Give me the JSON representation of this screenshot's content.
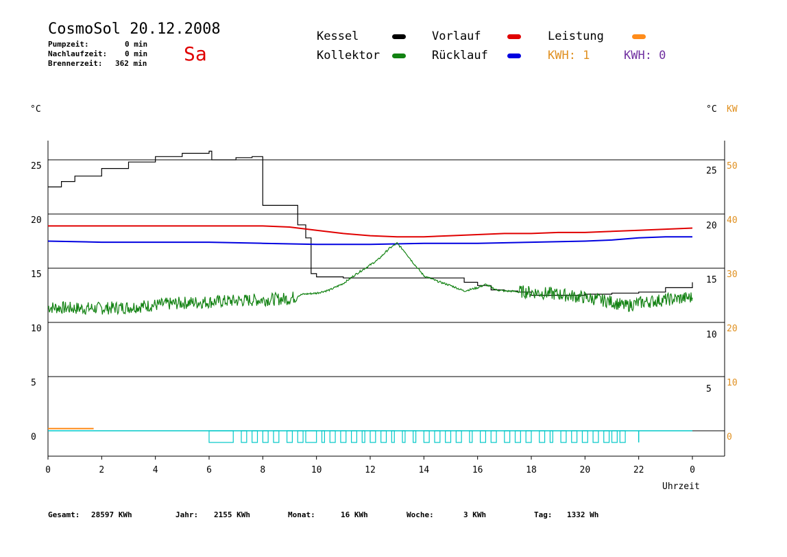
{
  "header": {
    "title": "CosmoSol 20.12.2008",
    "day": "Sa",
    "info": [
      {
        "label": "Pumpzeit:",
        "value": "0 min"
      },
      {
        "label": "Nachlaufzeit:",
        "value": "0 min"
      },
      {
        "label": "Brennerzeit:",
        "value": "362 min"
      }
    ]
  },
  "legend": {
    "kessel": {
      "label": "Kessel",
      "color": "#000000"
    },
    "vorlauf": {
      "label": "Vorlauf",
      "color": "#e00000"
    },
    "leistung": {
      "label": "Leistung",
      "color": "#ff8c1a"
    },
    "kollektor": {
      "label": "Kollektor",
      "color": "#128212"
    },
    "ruecklauf": {
      "label": "Rücklauf",
      "color": "#0000e0"
    },
    "kwh1": {
      "label": "KWH: 1",
      "color": "#e09020"
    },
    "kwh2": {
      "label": "KWH: 0",
      "color": "#7030a0"
    }
  },
  "axes": {
    "left_unit": "°C",
    "right_unit": "°C",
    "right_unit2": "KW",
    "xlabel": "Uhrzeit"
  },
  "chart_data": {
    "type": "line",
    "x_ticks": [
      "0",
      "2",
      "4",
      "6",
      "8",
      "10",
      "12",
      "14",
      "16",
      "18",
      "20",
      "22",
      "0"
    ],
    "y_left_ticks": [
      "25",
      "20",
      "15",
      "10",
      "5",
      "0"
    ],
    "y_right_ticks": [
      "25",
      "20",
      "15",
      "10",
      "5"
    ],
    "y_kw_ticks": [
      "50",
      "40",
      "30",
      "20",
      "10",
      "0"
    ],
    "xlim": [
      0,
      24
    ],
    "ylim": [
      -2.5,
      27
    ],
    "grid": "horizontal",
    "series": [
      {
        "name": "Kessel",
        "color": "#000000",
        "points": [
          [
            0,
            22.5
          ],
          [
            0.5,
            23.0
          ],
          [
            1,
            23.5
          ],
          [
            2,
            24.2
          ],
          [
            3,
            24.8
          ],
          [
            4,
            25.3
          ],
          [
            5,
            25.6
          ],
          [
            6,
            25.8
          ],
          [
            6.1,
            25.0
          ],
          [
            6.8,
            25.0
          ],
          [
            7,
            25.2
          ],
          [
            7.6,
            25.3
          ],
          [
            7.8,
            25.3
          ],
          [
            8.0,
            20.8
          ],
          [
            9.0,
            20.8
          ],
          [
            9.3,
            19.0
          ],
          [
            9.6,
            17.8
          ],
          [
            9.8,
            14.5
          ],
          [
            10,
            14.2
          ],
          [
            10.5,
            14.2
          ],
          [
            11,
            14.1
          ],
          [
            12,
            14.1
          ],
          [
            13,
            14.1
          ],
          [
            14,
            14.1
          ],
          [
            15,
            14.1
          ],
          [
            15.5,
            13.7
          ],
          [
            16,
            13.4
          ],
          [
            16.5,
            13.0
          ],
          [
            17,
            12.9
          ],
          [
            17.5,
            12.8
          ],
          [
            18,
            12.5
          ],
          [
            19,
            12.5
          ],
          [
            20,
            12.6
          ],
          [
            21,
            12.7
          ],
          [
            22,
            12.8
          ],
          [
            23,
            13.2
          ],
          [
            24,
            13.7
          ]
        ]
      },
      {
        "name": "Vorlauf",
        "color": "#e00000",
        "points": [
          [
            0,
            18.9
          ],
          [
            2,
            18.9
          ],
          [
            4,
            18.9
          ],
          [
            6,
            18.9
          ],
          [
            8,
            18.9
          ],
          [
            9,
            18.8
          ],
          [
            10,
            18.5
          ],
          [
            11,
            18.2
          ],
          [
            12,
            18.0
          ],
          [
            13,
            17.9
          ],
          [
            14,
            17.9
          ],
          [
            15,
            18.0
          ],
          [
            16,
            18.1
          ],
          [
            17,
            18.2
          ],
          [
            18,
            18.2
          ],
          [
            19,
            18.3
          ],
          [
            20,
            18.3
          ],
          [
            21,
            18.4
          ],
          [
            22,
            18.5
          ],
          [
            23,
            18.6
          ],
          [
            24,
            18.7
          ]
        ]
      },
      {
        "name": "Rücklauf",
        "color": "#0000e0",
        "points": [
          [
            0,
            17.5
          ],
          [
            2,
            17.4
          ],
          [
            4,
            17.4
          ],
          [
            6,
            17.4
          ],
          [
            8,
            17.3
          ],
          [
            10,
            17.2
          ],
          [
            12,
            17.2
          ],
          [
            14,
            17.3
          ],
          [
            16,
            17.3
          ],
          [
            18,
            17.4
          ],
          [
            20,
            17.5
          ],
          [
            21,
            17.6
          ],
          [
            22,
            17.8
          ],
          [
            23,
            17.9
          ],
          [
            24,
            17.9
          ]
        ]
      },
      {
        "name": "Kollektor",
        "color": "#128212",
        "points": [
          [
            0,
            11.4
          ],
          [
            1,
            11.3
          ],
          [
            2,
            11.3
          ],
          [
            3,
            11.4
          ],
          [
            4,
            11.6
          ],
          [
            5,
            11.8
          ],
          [
            6,
            11.9
          ],
          [
            7,
            12.0
          ],
          [
            8,
            12.1
          ],
          [
            9,
            12.2
          ],
          [
            9.5,
            12.6
          ],
          [
            10,
            12.7
          ],
          [
            10.5,
            13.0
          ],
          [
            11,
            13.6
          ],
          [
            11.5,
            14.5
          ],
          [
            12,
            15.3
          ],
          [
            12.3,
            15.8
          ],
          [
            12.7,
            16.8
          ],
          [
            13.0,
            17.3
          ],
          [
            13.3,
            16.5
          ],
          [
            13.6,
            15.5
          ],
          [
            14,
            14.3
          ],
          [
            14.5,
            13.8
          ],
          [
            15,
            13.4
          ],
          [
            15.5,
            12.9
          ],
          [
            16,
            13.2
          ],
          [
            16.3,
            13.5
          ],
          [
            16.7,
            13.0
          ],
          [
            17,
            12.9
          ],
          [
            18,
            12.8
          ],
          [
            19,
            12.6
          ],
          [
            20,
            12.3
          ],
          [
            21,
            11.9
          ],
          [
            21.5,
            11.5
          ],
          [
            22,
            11.8
          ],
          [
            23,
            12.1
          ],
          [
            24,
            12.3
          ]
        ]
      },
      {
        "name": "Leistung",
        "color": "#ff8c1a",
        "points": [
          [
            0,
            0.2
          ],
          [
            1.7,
            0.2
          ]
        ]
      }
    ],
    "noise": {
      "Kollektor": 0.6
    }
  },
  "footer": [
    {
      "label": "Gesamt:",
      "value": "28597 KWh"
    },
    {
      "label": "Jahr:",
      "value": "2155 KWh"
    },
    {
      "label": "Monat:",
      "value": "16 KWh"
    },
    {
      "label": "Woche:",
      "value": "3 KWh"
    },
    {
      "label": "Tag:",
      "value": "1332 Wh"
    }
  ]
}
